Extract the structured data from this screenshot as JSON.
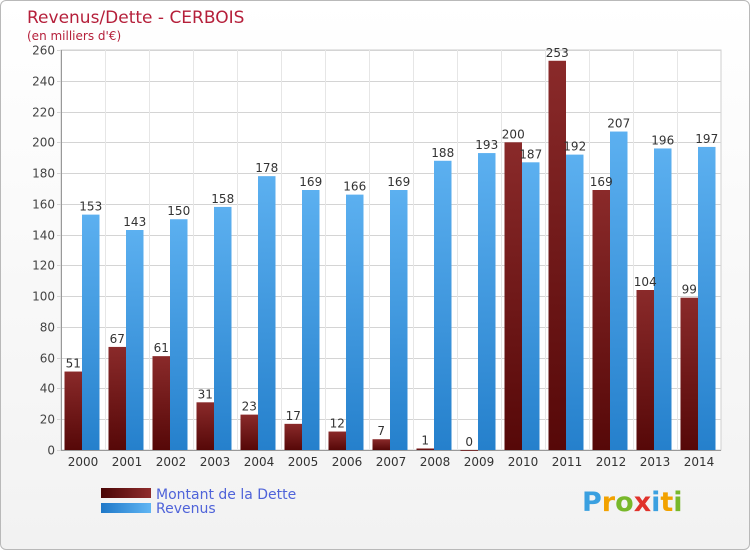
{
  "chart_data": {
    "type": "bar",
    "title": "Revenus/Dette - CERBOIS",
    "subtitle": "(en milliers d'€)",
    "categories": [
      "2000",
      "2001",
      "2002",
      "2003",
      "2004",
      "2005",
      "2006",
      "2007",
      "2008",
      "2009",
      "2010",
      "2011",
      "2012",
      "2013",
      "2014"
    ],
    "series": [
      {
        "name": "Montant de la Dette",
        "values": [
          51,
          67,
          61,
          31,
          23,
          17,
          12,
          7,
          1,
          0,
          200,
          253,
          169,
          104,
          99
        ],
        "color": "#7a1f1f"
      },
      {
        "name": "Revenus",
        "values": [
          153,
          143,
          150,
          158,
          178,
          169,
          166,
          169,
          188,
          193,
          187,
          192,
          207,
          196,
          197
        ],
        "color": "#3a9be6"
      }
    ],
    "ylim": [
      0,
      260
    ],
    "yticks": [
      0,
      20,
      40,
      60,
      80,
      100,
      120,
      140,
      160,
      180,
      200,
      220,
      240,
      260
    ],
    "grid": true,
    "legend_position": "bottom-left"
  },
  "logo": {
    "text": "Proxiti",
    "letters": [
      {
        "ch": "P",
        "color": "#3aa0e0"
      },
      {
        "ch": "r",
        "color": "#f2a200"
      },
      {
        "ch": "o",
        "color": "#78b82a"
      },
      {
        "ch": "x",
        "color": "#e0322b"
      },
      {
        "ch": "i",
        "color": "#3aa0e0"
      },
      {
        "ch": "t",
        "color": "#f2a200"
      },
      {
        "ch": "i",
        "color": "#78b82a"
      }
    ]
  }
}
